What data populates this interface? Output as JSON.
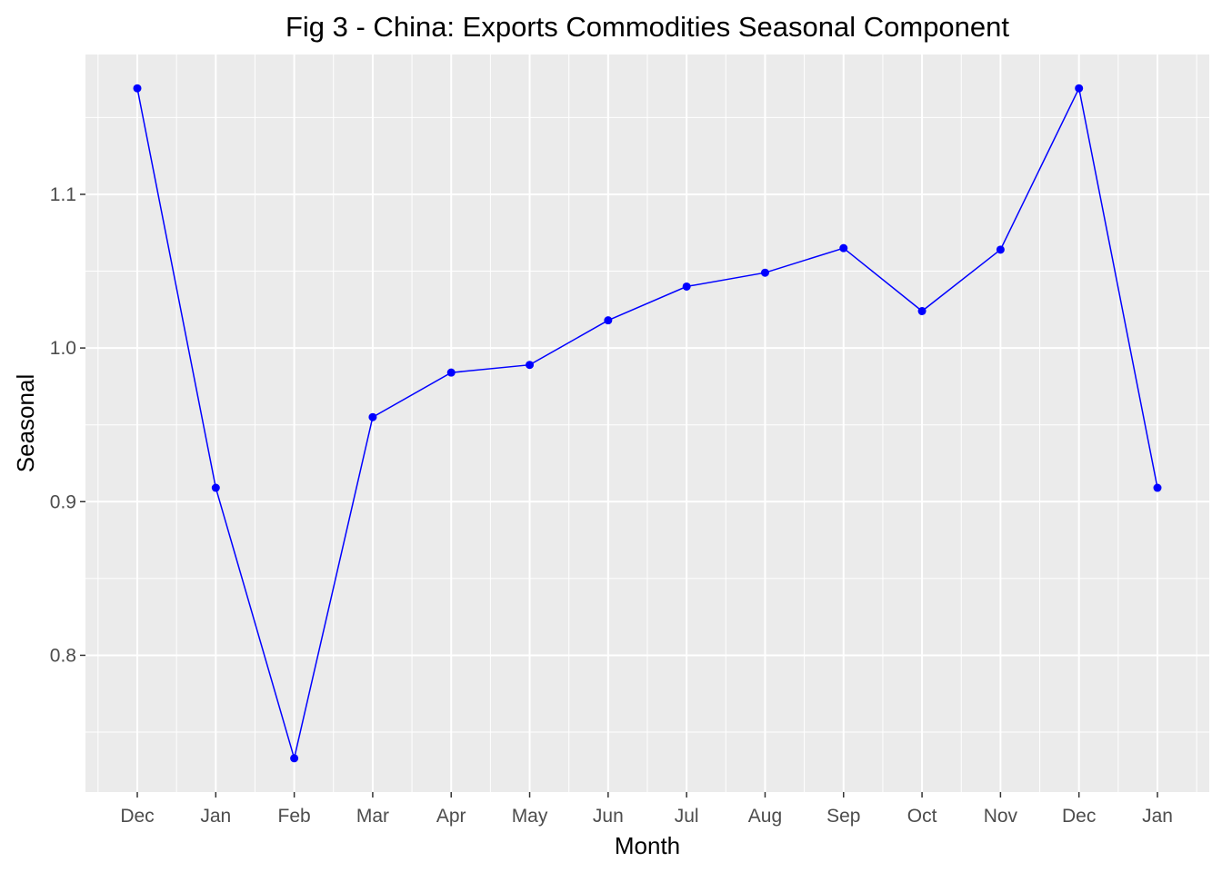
{
  "chart_data": {
    "type": "line",
    "title": "Fig 3 - China: Exports Commodities Seasonal Component",
    "xlabel": "Month",
    "ylabel": "Seasonal",
    "categories": [
      "Dec",
      "Jan",
      "Feb",
      "Mar",
      "Apr",
      "May",
      "Jun",
      "Jul",
      "Aug",
      "Sep",
      "Oct",
      "Nov",
      "Dec",
      "Jan"
    ],
    "series": [
      {
        "values": [
          1.169,
          0.909,
          0.733,
          0.955,
          0.984,
          0.989,
          1.018,
          1.04,
          1.049,
          1.065,
          1.024,
          1.064,
          1.169,
          0.909
        ]
      }
    ],
    "ylim": [
      0.711,
      1.191
    ],
    "yticks": [
      0.8,
      0.9,
      1.0,
      1.1
    ],
    "ytick_labels": [
      "0.8",
      "0.9",
      "1.0",
      "1.1"
    ],
    "grid": true,
    "legend": "none",
    "colors": {
      "line": "#0000ff",
      "panel_background": "#ebebeb",
      "grid": "#ffffff",
      "tick_text": "#4d4d4d"
    }
  }
}
